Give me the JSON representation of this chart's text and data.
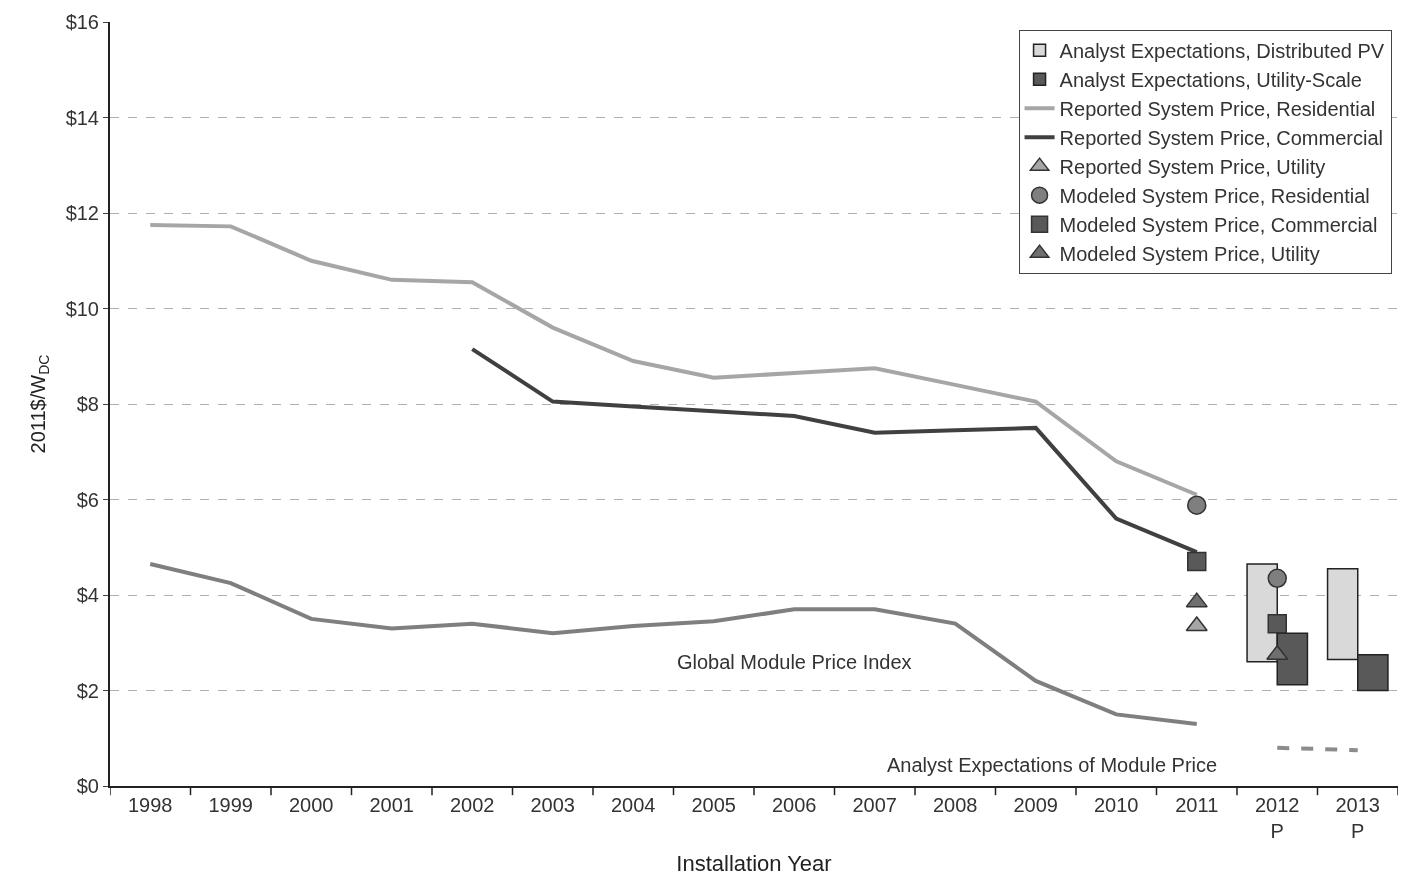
{
  "chart_data": {
    "type": "line",
    "xlabel": "Installation Year",
    "ylabel": "2011$/W$_{DC}$",
    "categories": [
      "1998",
      "1999",
      "2000",
      "2001",
      "2002",
      "2003",
      "2004",
      "2005",
      "2006",
      "2007",
      "2008",
      "2009",
      "2010",
      "2011",
      "2012\nP",
      "2013\nP"
    ],
    "ylim": [
      0,
      16
    ],
    "yticks": [
      {
        "value": 0,
        "label": "$0"
      },
      {
        "value": 2,
        "label": "$2"
      },
      {
        "value": 4,
        "label": "$4"
      },
      {
        "value": 6,
        "label": "$6"
      },
      {
        "value": 8,
        "label": "$8"
      },
      {
        "value": 10,
        "label": "$10"
      },
      {
        "value": 12,
        "label": "$12"
      },
      {
        "value": 14,
        "label": "$14"
      },
      {
        "value": 16,
        "label": "$16"
      }
    ],
    "grid": "y",
    "legend": "top right",
    "series": [
      {
        "name": "Analyst Expectations, Distributed PV",
        "type": "bar",
        "color": "#d9d9d9",
        "base": [
          null,
          null,
          null,
          null,
          null,
          null,
          null,
          null,
          null,
          null,
          null,
          null,
          null,
          null,
          2.6,
          2.65
        ],
        "values": [
          null,
          null,
          null,
          null,
          null,
          null,
          null,
          null,
          null,
          null,
          null,
          null,
          null,
          null,
          2.05,
          1.9
        ]
      },
      {
        "name": "Analyst Expectations, Utility-Scale",
        "type": "bar",
        "color": "#595959",
        "base": [
          null,
          null,
          null,
          null,
          null,
          null,
          null,
          null,
          null,
          null,
          null,
          null,
          null,
          null,
          2.12,
          2.0
        ],
        "values": [
          null,
          null,
          null,
          null,
          null,
          null,
          null,
          null,
          null,
          null,
          null,
          null,
          null,
          null,
          1.08,
          0.75
        ]
      },
      {
        "name": "Reported System Price, Residential",
        "color": "#a6a6a6",
        "marker": "none",
        "line_style": "solid",
        "values": [
          11.75,
          11.72,
          11.0,
          10.6,
          10.55,
          9.6,
          8.9,
          8.55,
          8.65,
          8.75,
          8.4,
          8.05,
          6.8,
          6.1,
          null,
          null
        ]
      },
      {
        "name": "Reported System Price, Commercial",
        "color": "#404040",
        "marker": "none",
        "line_style": "solid",
        "values": [
          null,
          null,
          null,
          null,
          9.15,
          8.05,
          7.95,
          7.85,
          7.75,
          7.4,
          7.45,
          7.5,
          5.6,
          4.9,
          null,
          null
        ]
      },
      {
        "name": "Reported System Price, Utility",
        "type": "scatter",
        "color": "#a6a6a6",
        "marker": "triangle",
        "values": [
          null,
          null,
          null,
          null,
          null,
          null,
          null,
          null,
          null,
          null,
          null,
          null,
          null,
          3.35,
          null,
          null
        ]
      },
      {
        "name": "Modeled System Price, Residential",
        "type": "scatter",
        "color": "#7f7f7f",
        "marker": "circle",
        "values": [
          null,
          null,
          null,
          null,
          null,
          null,
          null,
          null,
          null,
          null,
          null,
          null,
          null,
          5.88,
          4.35,
          null
        ]
      },
      {
        "name": "Modeled System Price, Commercial",
        "type": "scatter",
        "color": "#595959",
        "marker": "square",
        "values": [
          null,
          null,
          null,
          null,
          null,
          null,
          null,
          null,
          null,
          null,
          null,
          null,
          null,
          4.7,
          3.4,
          null
        ]
      },
      {
        "name": "Modeled System Price, Utility",
        "type": "scatter",
        "color": "#6f6f6f",
        "marker": "triangle",
        "values": [
          null,
          null,
          null,
          null,
          null,
          null,
          null,
          null,
          null,
          null,
          null,
          null,
          null,
          3.85,
          2.75,
          null
        ]
      },
      {
        "color": "#7f7f7f",
        "marker": "none",
        "line_style": "solid",
        "values": [
          4.65,
          4.25,
          3.5,
          3.3,
          3.4,
          3.2,
          3.35,
          3.45,
          3.7,
          3.7,
          3.4,
          2.2,
          1.5,
          1.3,
          null,
          null
        ]
      },
      {
        "color": "#8c8c8c",
        "marker": "none",
        "line_style": "dashed",
        "values": [
          null,
          null,
          null,
          null,
          null,
          null,
          null,
          null,
          null,
          null,
          null,
          null,
          null,
          null,
          0.8,
          0.75
        ]
      }
    ],
    "annotations": [
      "Global Module Price Index",
      "Analyst Expectations of Module Price"
    ]
  }
}
